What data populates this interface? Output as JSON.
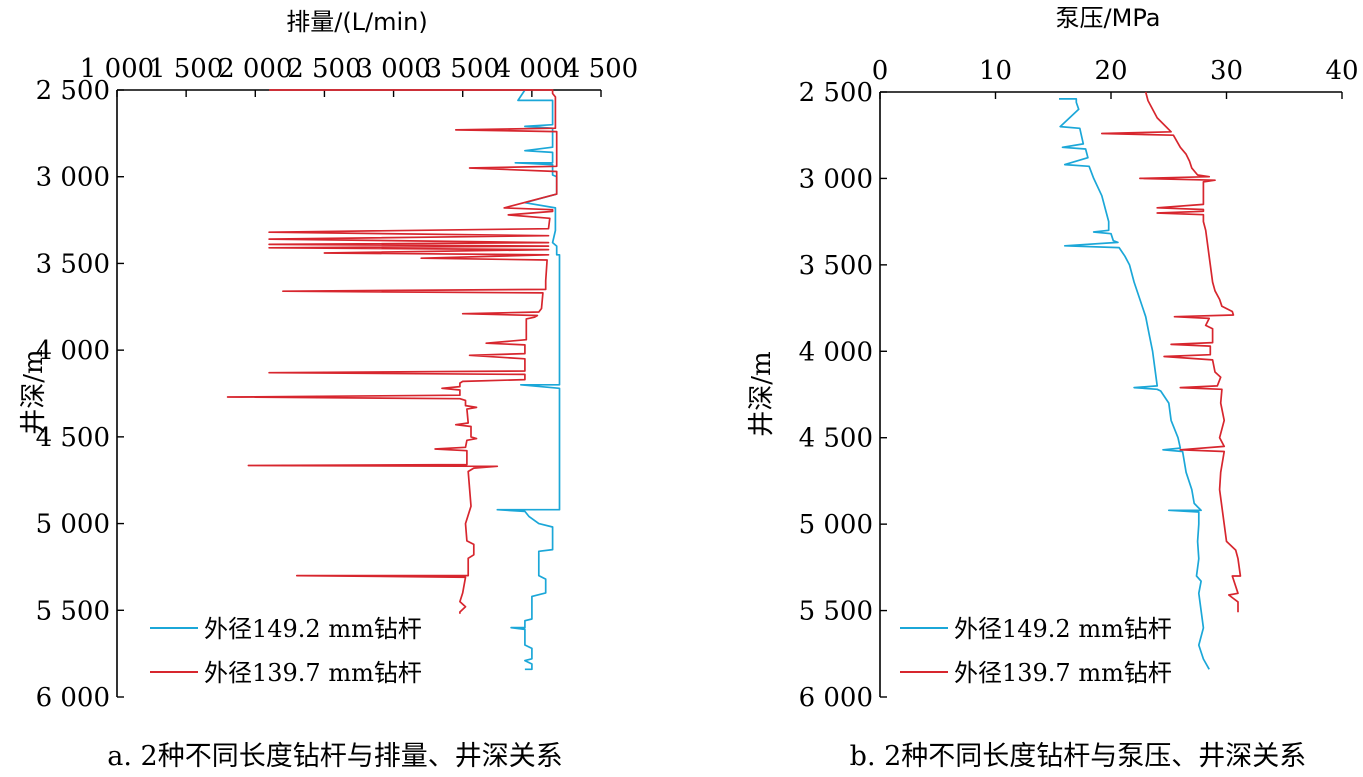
{
  "chart_data": [
    {
      "type": "line",
      "panel": "a",
      "caption": "a. 2种不同长度钻杆与排量、井深关系",
      "x_axis_label": "排量/(L/min)",
      "y_axis_label": "井深/m",
      "xlim": [
        1000,
        4500
      ],
      "ylim": [
        2500,
        6000
      ],
      "x_ticks": [
        "1 000",
        "1 500",
        "2 000",
        "2 500",
        "3 000",
        "3 500",
        "4 000",
        "4 500"
      ],
      "y_ticks": [
        "2 500",
        "3 000",
        "3 500",
        "4 000",
        "4 500",
        "5 000",
        "5 500",
        "6 000"
      ],
      "legend_position": "bottom-left",
      "series": [
        {
          "name": "外径149.2 mm钻杆",
          "color": "#1ba7d8",
          "points": [
            [
              3950,
              2500
            ],
            [
              3900,
              2560
            ],
            [
              4150,
              2560
            ],
            [
              4150,
              2700
            ],
            [
              3950,
              2710
            ],
            [
              4150,
              2720
            ],
            [
              4150,
              2830
            ],
            [
              3950,
              2850
            ],
            [
              4150,
              2860
            ],
            [
              4150,
              2920
            ],
            [
              3880,
              2920
            ],
            [
              4150,
              2930
            ],
            [
              4150,
              2990
            ],
            [
              4180,
              3000
            ],
            [
              4180,
              3100
            ],
            [
              3950,
              3150
            ],
            [
              4170,
              3180
            ],
            [
              4170,
              3310
            ],
            [
              4150,
              3380
            ],
            [
              4180,
              3400
            ],
            [
              4180,
              3450
            ],
            [
              4200,
              3450
            ],
            [
              4200,
              4200
            ],
            [
              3920,
              4200
            ],
            [
              4200,
              4220
            ],
            [
              4200,
              4920
            ],
            [
              3750,
              4920
            ],
            [
              3950,
              4930
            ],
            [
              3980,
              4960
            ],
            [
              4050,
              5000
            ],
            [
              4150,
              5020
            ],
            [
              4150,
              5150
            ],
            [
              4050,
              5160
            ],
            [
              4050,
              5300
            ],
            [
              4100,
              5320
            ],
            [
              4100,
              5400
            ],
            [
              4000,
              5420
            ],
            [
              4000,
              5550
            ],
            [
              3950,
              5560
            ],
            [
              3950,
              5600
            ],
            [
              3850,
              5600
            ],
            [
              3950,
              5610
            ],
            [
              3950,
              5700
            ],
            [
              4000,
              5720
            ],
            [
              4000,
              5780
            ],
            [
              3950,
              5790
            ],
            [
              4000,
              5810
            ],
            [
              4000,
              5840
            ],
            [
              3950,
              5840
            ]
          ]
        },
        {
          "name": "外径139.7 mm钻杆",
          "color": "#d7262e",
          "points": [
            [
              2100,
              2500
            ],
            [
              4150,
              2500
            ],
            [
              4150,
              2520
            ],
            [
              4170,
              2540
            ],
            [
              4170,
              2720
            ],
            [
              3450,
              2730
            ],
            [
              4180,
              2740
            ],
            [
              4180,
              2940
            ],
            [
              3550,
              2950
            ],
            [
              4180,
              2970
            ],
            [
              4180,
              3100
            ],
            [
              3800,
              3180
            ],
            [
              4150,
              3190
            ],
            [
              4150,
              3200
            ],
            [
              3830,
              3220
            ],
            [
              4130,
              3240
            ],
            [
              4120,
              3300
            ],
            [
              2100,
              3320
            ],
            [
              4120,
              3340
            ],
            [
              2100,
              3360
            ],
            [
              4120,
              3380
            ],
            [
              2100,
              3390
            ],
            [
              4120,
              3400
            ],
            [
              2100,
              3410
            ],
            [
              4120,
              3420
            ],
            [
              2500,
              3440
            ],
            [
              4120,
              3450
            ],
            [
              3200,
              3470
            ],
            [
              4110,
              3480
            ],
            [
              4100,
              3600
            ],
            [
              4100,
              3650
            ],
            [
              2200,
              3660
            ],
            [
              4080,
              3670
            ],
            [
              4070,
              3760
            ],
            [
              4050,
              3780
            ],
            [
              3500,
              3790
            ],
            [
              4040,
              3800
            ],
            [
              4020,
              3810
            ],
            [
              3960,
              3820
            ],
            [
              3960,
              3940
            ],
            [
              3670,
              3960
            ],
            [
              3950,
              3970
            ],
            [
              3950,
              4020
            ],
            [
              3550,
              4030
            ],
            [
              3950,
              4050
            ],
            [
              3950,
              4120
            ],
            [
              2100,
              4130
            ],
            [
              3950,
              4140
            ],
            [
              3950,
              4170
            ],
            [
              3500,
              4180
            ],
            [
              3480,
              4190
            ],
            [
              3480,
              4210
            ],
            [
              3350,
              4220
            ],
            [
              3480,
              4230
            ],
            [
              3480,
              4260
            ],
            [
              1800,
              4270
            ],
            [
              3480,
              4280
            ],
            [
              3520,
              4290
            ],
            [
              3520,
              4320
            ],
            [
              3600,
              4330
            ],
            [
              3530,
              4340
            ],
            [
              3540,
              4420
            ],
            [
              3450,
              4430
            ],
            [
              3560,
              4440
            ],
            [
              3560,
              4500
            ],
            [
              3600,
              4510
            ],
            [
              3530,
              4520
            ],
            [
              3520,
              4560
            ],
            [
              3300,
              4570
            ],
            [
              3530,
              4580
            ],
            [
              3530,
              4660
            ],
            [
              1950,
              4665
            ],
            [
              3750,
              4670
            ],
            [
              3580,
              4680
            ],
            [
              3540,
              4700
            ],
            [
              3550,
              4800
            ],
            [
              3560,
              4900
            ],
            [
              3520,
              5000
            ],
            [
              3530,
              5100
            ],
            [
              3580,
              5120
            ],
            [
              3580,
              5180
            ],
            [
              3540,
              5200
            ],
            [
              3540,
              5300
            ],
            [
              2300,
              5300
            ],
            [
              3520,
              5310
            ],
            [
              3500,
              5400
            ],
            [
              3480,
              5450
            ],
            [
              3520,
              5480
            ],
            [
              3480,
              5510
            ],
            [
              3480,
              5520
            ]
          ]
        }
      ]
    },
    {
      "type": "line",
      "panel": "b",
      "caption": "b. 2种不同长度钻杆与泵压、井深关系",
      "x_axis_label": "泵压/MPa",
      "y_axis_label": "井深/m",
      "xlim": [
        0,
        40
      ],
      "ylim": [
        2500,
        6000
      ],
      "x_ticks": [
        "0",
        "10",
        "20",
        "30",
        "40"
      ],
      "y_ticks": [
        "2 500",
        "3 000",
        "3 500",
        "4 000",
        "4 500",
        "5 000",
        "5 500",
        "6 000"
      ],
      "legend_position": "bottom-left",
      "series": [
        {
          "name": "外径149.2 mm钻杆",
          "color": "#1ba7d8",
          "points": [
            [
              15.5,
              2540
            ],
            [
              17,
              2540
            ],
            [
              17,
              2560
            ],
            [
              17.2,
              2600
            ],
            [
              15.6,
              2700
            ],
            [
              17.3,
              2710
            ],
            [
              17.6,
              2800
            ],
            [
              15.8,
              2820
            ],
            [
              17.8,
              2830
            ],
            [
              18,
              2880
            ],
            [
              16,
              2920
            ],
            [
              18.1,
              2930
            ],
            [
              18.5,
              3000
            ],
            [
              19.2,
              3100
            ],
            [
              19.6,
              3200
            ],
            [
              19.8,
              3250
            ],
            [
              19.8,
              3300
            ],
            [
              18.5,
              3310
            ],
            [
              20,
              3320
            ],
            [
              20.2,
              3360
            ],
            [
              20.6,
              3370
            ],
            [
              16,
              3390
            ],
            [
              20.7,
              3400
            ],
            [
              21.2,
              3450
            ],
            [
              21.6,
              3500
            ],
            [
              22,
              3600
            ],
            [
              22.5,
              3700
            ],
            [
              23,
              3800
            ],
            [
              23.3,
              3900
            ],
            [
              23.6,
              4000
            ],
            [
              23.8,
              4100
            ],
            [
              24,
              4200
            ],
            [
              22,
              4210
            ],
            [
              24,
              4220
            ],
            [
              24.3,
              4230
            ],
            [
              25,
              4300
            ],
            [
              25.2,
              4400
            ],
            [
              25.8,
              4500
            ],
            [
              26,
              4560
            ],
            [
              24.5,
              4570
            ],
            [
              26.2,
              4580
            ],
            [
              26.5,
              4700
            ],
            [
              27,
              4800
            ],
            [
              27.2,
              4880
            ],
            [
              27.5,
              4900
            ],
            [
              27.8,
              4920
            ],
            [
              25,
              4920
            ],
            [
              27.6,
              4930
            ],
            [
              27.6,
              5000
            ],
            [
              27.5,
              5100
            ],
            [
              27.6,
              5200
            ],
            [
              27.4,
              5300
            ],
            [
              27.8,
              5330
            ],
            [
              27.6,
              5400
            ],
            [
              27.8,
              5500
            ],
            [
              28,
              5600
            ],
            [
              27.6,
              5700
            ],
            [
              28,
              5780
            ],
            [
              28.5,
              5840
            ]
          ]
        },
        {
          "name": "外径139.7 mm钻杆",
          "color": "#d7262e",
          "points": [
            [
              23,
              2500
            ],
            [
              23.2,
              2550
            ],
            [
              24,
              2650
            ],
            [
              25.2,
              2730
            ],
            [
              19.2,
              2740
            ],
            [
              25.4,
              2750
            ],
            [
              26,
              2820
            ],
            [
              26.5,
              2860
            ],
            [
              26.8,
              2900
            ],
            [
              27,
              2940
            ],
            [
              27.5,
              2980
            ],
            [
              28.5,
              2990
            ],
            [
              22.5,
              3000
            ],
            [
              29,
              3010
            ],
            [
              28,
              3020
            ],
            [
              28,
              3150
            ],
            [
              24,
              3170
            ],
            [
              28,
              3180
            ],
            [
              28,
              3190
            ],
            [
              24,
              3200
            ],
            [
              28,
              3210
            ],
            [
              28,
              3250
            ],
            [
              28.2,
              3300
            ],
            [
              28.4,
              3400
            ],
            [
              28.6,
              3500
            ],
            [
              28.8,
              3600
            ],
            [
              29,
              3650
            ],
            [
              29.4,
              3700
            ],
            [
              29.6,
              3740
            ],
            [
              30.5,
              3770
            ],
            [
              30.6,
              3790
            ],
            [
              25.5,
              3800
            ],
            [
              28.5,
              3810
            ],
            [
              28.2,
              3850
            ],
            [
              28.8,
              3870
            ],
            [
              28.8,
              3950
            ],
            [
              25.2,
              3960
            ],
            [
              28.6,
              3970
            ],
            [
              28.6,
              4020
            ],
            [
              24.6,
              4030
            ],
            [
              28.8,
              4050
            ],
            [
              29,
              4120
            ],
            [
              29.5,
              4150
            ],
            [
              29.2,
              4200
            ],
            [
              26,
              4210
            ],
            [
              29.6,
              4220
            ],
            [
              29.5,
              4300
            ],
            [
              29.8,
              4400
            ],
            [
              29.4,
              4500
            ],
            [
              29.8,
              4550
            ],
            [
              26,
              4570
            ],
            [
              29.8,
              4580
            ],
            [
              29.5,
              4700
            ],
            [
              29.4,
              4800
            ],
            [
              29.6,
              4900
            ],
            [
              29.8,
              5000
            ],
            [
              30,
              5100
            ],
            [
              30.8,
              5150
            ],
            [
              31,
              5200
            ],
            [
              31.2,
              5300
            ],
            [
              30.5,
              5300
            ],
            [
              31,
              5400
            ],
            [
              30.2,
              5410
            ],
            [
              31,
              5450
            ],
            [
              31,
              5510
            ]
          ]
        }
      ]
    }
  ]
}
